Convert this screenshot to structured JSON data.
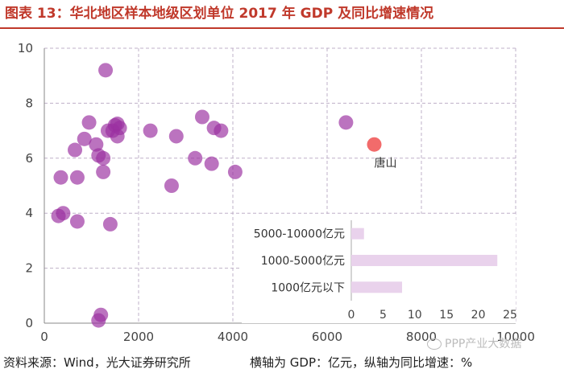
{
  "header": {
    "title": "图表 13：华北地区样本地级区划单位 2017 年 GDP 及同比增速情况"
  },
  "footer": {
    "source": "资料来源：Wind，光大证券研究所",
    "axes_note": "横轴为 GDP：亿元，纵轴为同比增速：%"
  },
  "watermark": {
    "text": "PPP产业大数据"
  },
  "colors": {
    "title": "#c0392b",
    "point": "#9b30a0",
    "highlight": "#f26b6b",
    "grid": "#bfb0c8",
    "inset_bar": "#e9d2ec"
  },
  "chart_data": [
    {
      "type": "scatter",
      "xlabel": "GDP（亿元）",
      "ylabel": "同比增速（%）",
      "xlim": [
        0,
        10000
      ],
      "ylim": [
        0,
        10
      ],
      "x_ticks": [
        "0",
        "2000",
        "4000",
        "6000",
        "8000",
        "10000"
      ],
      "y_ticks": [
        "0",
        "2",
        "4",
        "6",
        "8",
        "10"
      ],
      "grid": true,
      "points": [
        {
          "x": 1300,
          "y": 9.2
        },
        {
          "x": 950,
          "y": 7.3
        },
        {
          "x": 1100,
          "y": 6.5
        },
        {
          "x": 1350,
          "y": 7.0
        },
        {
          "x": 1450,
          "y": 7.0
        },
        {
          "x": 1500,
          "y": 7.2
        },
        {
          "x": 1550,
          "y": 7.25
        },
        {
          "x": 1600,
          "y": 7.1
        },
        {
          "x": 1550,
          "y": 6.8
        },
        {
          "x": 850,
          "y": 6.7
        },
        {
          "x": 650,
          "y": 6.3
        },
        {
          "x": 1150,
          "y": 6.1
        },
        {
          "x": 1250,
          "y": 6.0
        },
        {
          "x": 350,
          "y": 5.3
        },
        {
          "x": 700,
          "y": 5.3
        },
        {
          "x": 1250,
          "y": 5.5
        },
        {
          "x": 300,
          "y": 3.9
        },
        {
          "x": 400,
          "y": 4.0
        },
        {
          "x": 700,
          "y": 3.7
        },
        {
          "x": 1400,
          "y": 3.6
        },
        {
          "x": 1200,
          "y": 0.3
        },
        {
          "x": 1150,
          "y": 0.1
        },
        {
          "x": 2250,
          "y": 7.0
        },
        {
          "x": 2800,
          "y": 6.8
        },
        {
          "x": 3350,
          "y": 7.5
        },
        {
          "x": 3600,
          "y": 7.1
        },
        {
          "x": 3750,
          "y": 7.0
        },
        {
          "x": 3200,
          "y": 6.0
        },
        {
          "x": 3550,
          "y": 5.8
        },
        {
          "x": 4050,
          "y": 5.5
        },
        {
          "x": 2700,
          "y": 5.0
        },
        {
          "x": 6400,
          "y": 7.3
        }
      ],
      "highlight": {
        "x": 7000,
        "y": 6.5,
        "label": "唐山"
      }
    },
    {
      "type": "bar",
      "orientation": "horizontal",
      "categories": [
        "5000-10000亿元",
        "1000-5000亿元",
        "1000亿元以下"
      ],
      "values": [
        2,
        23,
        8
      ],
      "xlim": [
        0,
        25
      ],
      "x_ticks": [
        "0",
        "5",
        "10",
        "15",
        "20",
        "25"
      ]
    }
  ]
}
